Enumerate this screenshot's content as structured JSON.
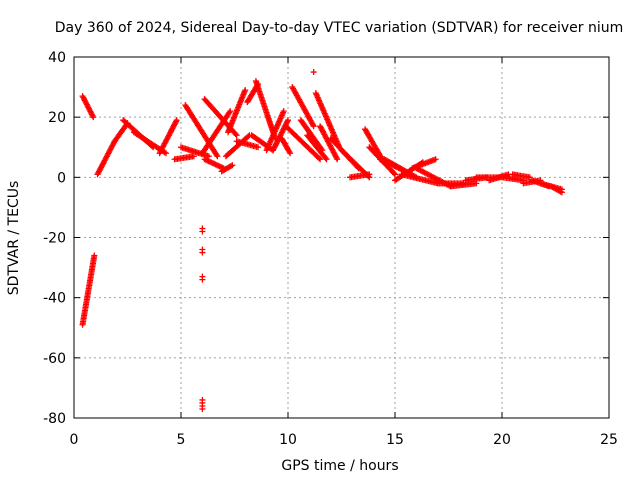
{
  "chart_data": {
    "type": "scatter",
    "title": "Day 360 of 2024, Sidereal Day-to-day VTEC variation (SDTVAR) for receiver nium",
    "xlabel": "GPS time / hours",
    "ylabel": "SDTVAR / TECUs",
    "xlim": [
      0,
      25
    ],
    "ylim": [
      -80,
      40
    ],
    "xticks": [
      0,
      5,
      10,
      15,
      20,
      25
    ],
    "yticks": [
      -80,
      -60,
      -40,
      -20,
      0,
      20,
      40
    ],
    "grid": true,
    "legend": "none",
    "marker": "+",
    "series": [
      {
        "name": "SDTVAR",
        "color": "#ff0000",
        "tracks": [
          {
            "from": [
              0.4,
              27
            ],
            "to": [
              0.9,
              20
            ]
          },
          {
            "from": [
              0.4,
              -49
            ],
            "to": [
              0.95,
              -26
            ]
          },
          {
            "from": [
              1.1,
              1
            ],
            "to": [
              1.9,
              12
            ]
          },
          {
            "from": [
              1.9,
              12
            ],
            "to": [
              2.5,
              18
            ]
          },
          {
            "from": [
              2.3,
              19
            ],
            "to": [
              3.7,
              10
            ]
          },
          {
            "from": [
              2.8,
              15
            ],
            "to": [
              4.3,
              8
            ]
          },
          {
            "from": [
              4.0,
              8
            ],
            "to": [
              4.8,
              19
            ]
          },
          {
            "from": [
              4.7,
              6
            ],
            "to": [
              5.6,
              7
            ]
          },
          {
            "from": [
              5.0,
              10
            ],
            "to": [
              6.3,
              7
            ]
          },
          {
            "from": [
              5.2,
              24
            ],
            "to": [
              6.7,
              7
            ]
          },
          {
            "from": [
              6.1,
              6
            ],
            "to": [
              7.0,
              3
            ]
          },
          {
            "from": [
              6.0,
              8
            ],
            "to": [
              7.3,
              22
            ]
          },
          {
            "from": [
              6.1,
              26
            ],
            "to": [
              7.6,
              14
            ]
          },
          {
            "from": [
              6.9,
              2
            ],
            "to": [
              7.4,
              4
            ]
          },
          {
            "from": [
              7.2,
              15
            ],
            "to": [
              8.0,
              29
            ]
          },
          {
            "from": [
              7.1,
              7
            ],
            "to": [
              8.2,
              14
            ]
          },
          {
            "from": [
              7.6,
              12
            ],
            "to": [
              8.6,
              10
            ]
          },
          {
            "from": [
              8.1,
              25
            ],
            "to": [
              8.6,
              31
            ]
          },
          {
            "from": [
              8.3,
              14
            ],
            "to": [
              9.3,
              9
            ]
          },
          {
            "from": [
              8.5,
              32
            ],
            "to": [
              9.4,
              13
            ]
          },
          {
            "from": [
              9.0,
              9
            ],
            "to": [
              9.8,
              22
            ]
          },
          {
            "from": [
              9.3,
              9
            ],
            "to": [
              10.0,
              19
            ]
          },
          {
            "from": [
              9.7,
              13
            ],
            "to": [
              10.1,
              8
            ]
          },
          {
            "from": [
              9.9,
              17
            ],
            "to": [
              11.5,
              6
            ]
          },
          {
            "from": [
              10.2,
              30
            ],
            "to": [
              11.2,
              17
            ]
          },
          {
            "from": [
              10.6,
              19
            ],
            "to": [
              11.6,
              9
            ]
          },
          {
            "from": [
              10.9,
              14
            ],
            "to": [
              11.8,
              6
            ]
          },
          {
            "from": [
              11.3,
              28
            ],
            "to": [
              12.4,
              10
            ]
          },
          {
            "from": [
              11.5,
              17
            ],
            "to": [
              12.3,
              6
            ]
          },
          {
            "from": [
              12.0,
              13
            ],
            "to": [
              13.3,
              3
            ]
          },
          {
            "from": [
              12.5,
              9
            ],
            "to": [
              13.8,
              0
            ]
          },
          {
            "from": [
              12.9,
              0
            ],
            "to": [
              13.8,
              1
            ]
          },
          {
            "from": [
              13.6,
              16
            ],
            "to": [
              14.4,
              6
            ]
          },
          {
            "from": [
              13.8,
              10
            ],
            "to": [
              15.0,
              1
            ]
          },
          {
            "from": [
              14.3,
              6
            ],
            "to": [
              15.5,
              2
            ]
          },
          {
            "from": [
              14.5,
              6
            ],
            "to": [
              16.0,
              0
            ]
          },
          {
            "from": [
              15.0,
              -1
            ],
            "to": [
              16.3,
              5
            ]
          },
          {
            "from": [
              15.3,
              1
            ],
            "to": [
              17.0,
              -2
            ]
          },
          {
            "from": [
              15.8,
              3
            ],
            "to": [
              16.9,
              6
            ]
          },
          {
            "from": [
              16.0,
              3
            ],
            "to": [
              17.6,
              -3
            ]
          },
          {
            "from": [
              17.0,
              -2
            ],
            "to": [
              18.2,
              -2
            ]
          },
          {
            "from": [
              17.6,
              -3
            ],
            "to": [
              18.8,
              -2
            ]
          },
          {
            "from": [
              18.3,
              -1
            ],
            "to": [
              19.3,
              0
            ]
          },
          {
            "from": [
              18.8,
              0
            ],
            "to": [
              19.9,
              0
            ]
          },
          {
            "from": [
              19.4,
              -1
            ],
            "to": [
              20.3,
              1
            ]
          },
          {
            "from": [
              20.0,
              0
            ],
            "to": [
              21.0,
              -1
            ]
          },
          {
            "from": [
              20.5,
              1
            ],
            "to": [
              21.3,
              0
            ]
          },
          {
            "from": [
              21.0,
              -2
            ],
            "to": [
              21.8,
              -1
            ]
          },
          {
            "from": [
              21.4,
              -1
            ],
            "to": [
              22.2,
              -3
            ]
          },
          {
            "from": [
              21.8,
              -2
            ],
            "to": [
              22.8,
              -4
            ]
          },
          {
            "from": [
              22.3,
              -3
            ],
            "to": [
              22.8,
              -5
            ]
          }
        ],
        "points": [
          [
            11.2,
            35
          ],
          [
            6.0,
            -17
          ],
          [
            6.0,
            -18
          ],
          [
            6.0,
            -24
          ],
          [
            6.0,
            -25
          ],
          [
            6.0,
            -33
          ],
          [
            6.0,
            -34
          ],
          [
            6.0,
            -74
          ],
          [
            6.0,
            -75
          ],
          [
            6.0,
            -76
          ],
          [
            6.0,
            -77
          ]
        ]
      }
    ]
  }
}
